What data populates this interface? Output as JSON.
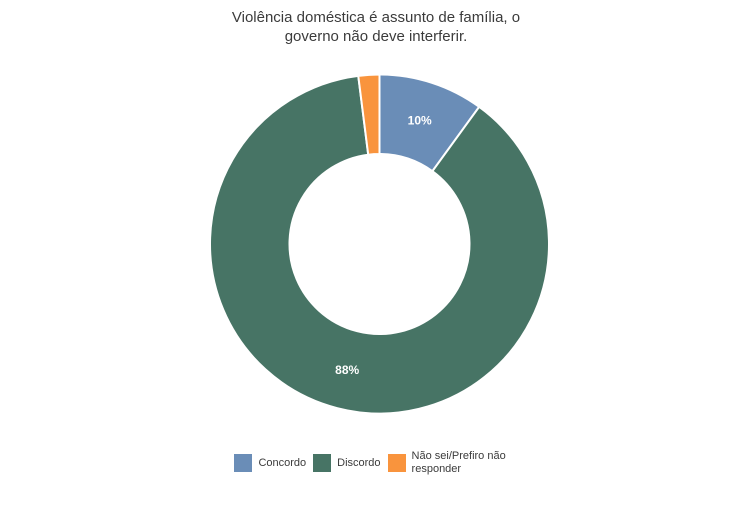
{
  "chart_data": {
    "type": "pie",
    "subtype": "donut",
    "title": "Violência doméstica é assunto de família, o\ngoverno não deve interferir.",
    "slices": [
      {
        "name": "Concordo",
        "value": 10,
        "label": "10%",
        "color": "#6a8db7"
      },
      {
        "name": "Discordo",
        "value": 88,
        "label": "88%",
        "color": "#477465"
      },
      {
        "name": "Não sei/Prefiro não responder",
        "value": 2,
        "label": "",
        "color": "#f9943d"
      }
    ],
    "start_angle": "12 o'clock, clockwise",
    "inner_radius_ratio": 0.53,
    "slice_border_color": "#ffffff",
    "label_color": "#ffffff",
    "title_color": "#3b3b3b",
    "legend_position": "bottom",
    "legend_text_color": "#3b3b3b",
    "background_color": "#ffffff"
  }
}
